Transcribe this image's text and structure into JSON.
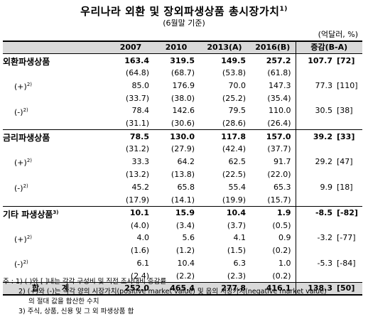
{
  "title": "우리나라 외환 및 장외파생상품 총시장가치",
  "title_sup": "1)",
  "subtitle": "(6월말 기준)",
  "unit": "(억달러, %)",
  "headers": [
    "",
    "2007",
    "2010",
    "2013(A)",
    "2016(B)",
    "증감(B-A)"
  ],
  "rows": [
    {
      "type": "cat",
      "label": "외환파생상품",
      "sup": "",
      "v": [
        "163.4",
        "319.5",
        "149.5",
        "257.2"
      ],
      "c": "107.7",
      "r": "[72]"
    },
    {
      "type": "sub",
      "label": "",
      "sup": "",
      "v": [
        "(64.8)",
        "(68.7)",
        "(53.8)",
        "(61.8)"
      ],
      "c": "",
      "r": ""
    },
    {
      "type": "sub",
      "label": "(+)",
      "sup": "2)",
      "v": [
        "85.0",
        "176.9",
        "70.0",
        "147.3"
      ],
      "c": "77.3",
      "r": "[110]"
    },
    {
      "type": "sub",
      "label": "",
      "sup": "",
      "v": [
        "(33.7)",
        "(38.0)",
        "(25.2)",
        "(35.4)"
      ],
      "c": "",
      "r": ""
    },
    {
      "type": "sub",
      "label": "(-)",
      "sup": "2)",
      "v": [
        "78.4",
        "142.6",
        "79.5",
        "110.0"
      ],
      "c": "30.5",
      "r": "[38]"
    },
    {
      "type": "sub",
      "label": "",
      "sup": "",
      "v": [
        "(31.1)",
        "(30.6)",
        "(28.6)",
        "(26.4)"
      ],
      "c": "",
      "r": "",
      "end": true
    },
    {
      "type": "cat",
      "label": "금리파생상품",
      "sup": "",
      "v": [
        "78.5",
        "130.0",
        "117.8",
        "157.0"
      ],
      "c": "39.2",
      "r": "[33]"
    },
    {
      "type": "sub",
      "label": "",
      "sup": "",
      "v": [
        "(31.2)",
        "(27.9)",
        "(42.4)",
        "(37.7)"
      ],
      "c": "",
      "r": ""
    },
    {
      "type": "sub",
      "label": "(+)",
      "sup": "2)",
      "v": [
        "33.3",
        "64.2",
        "62.5",
        "91.7"
      ],
      "c": "29.2",
      "r": "[47]"
    },
    {
      "type": "sub",
      "label": "",
      "sup": "",
      "v": [
        "(13.2)",
        "(13.8)",
        "(22.5)",
        "(22.0)"
      ],
      "c": "",
      "r": ""
    },
    {
      "type": "sub",
      "label": "(-)",
      "sup": "2)",
      "v": [
        "45.2",
        "65.8",
        "55.4",
        "65.3"
      ],
      "c": "9.9",
      "r": "[18]"
    },
    {
      "type": "sub",
      "label": "",
      "sup": "",
      "v": [
        "(17.9)",
        "(14.1)",
        "(19.9)",
        "(15.7)"
      ],
      "c": "",
      "r": "",
      "end": true
    },
    {
      "type": "cat",
      "label": "기타 파생상품",
      "sup": "3)",
      "v": [
        "10.1",
        "15.9",
        "10.4",
        "1.9"
      ],
      "c": "-8.5",
      "r": "[-82]"
    },
    {
      "type": "sub",
      "label": "",
      "sup": "",
      "v": [
        "(4.0)",
        "(3.4)",
        "(3.7)",
        "(0.5)"
      ],
      "c": "",
      "r": ""
    },
    {
      "type": "sub",
      "label": "(+)",
      "sup": "2)",
      "v": [
        "4.0",
        "5.6",
        "4.1",
        "0.9"
      ],
      "c": "-3.2",
      "r": "[-77]"
    },
    {
      "type": "sub",
      "label": "",
      "sup": "",
      "v": [
        "(1.6)",
        "(1.2)",
        "(1.5)",
        "(0.2)"
      ],
      "c": "",
      "r": ""
    },
    {
      "type": "sub",
      "label": "(-)",
      "sup": "2)",
      "v": [
        "6.1",
        "10.4",
        "6.3",
        "1.0"
      ],
      "c": "-5.3",
      "r": "[-84]"
    },
    {
      "type": "sub",
      "label": "",
      "sup": "",
      "v": [
        "(2.4)",
        "(2.2)",
        "(2.3)",
        "(0.2)"
      ],
      "c": "",
      "r": "",
      "end": true
    }
  ],
  "total": {
    "label": "합 계",
    "v": [
      "252.0",
      "465.4",
      "277.8",
      "416.1"
    ],
    "c": "138.3",
    "r": "[50]"
  },
  "notes": [
    "주 : 1) (   )와 [   ]내는 각각 구성비 및 직전 조사대비 증감률",
    "2) (+)와 (-)는 각각 양의 시장가치(positive market value) 및 음의 시장가치(negative market value)",
    "의 절대 값을 합산한 수치",
    "3) 주식, 상품, 신용 및 그 외 파생상품 합"
  ]
}
